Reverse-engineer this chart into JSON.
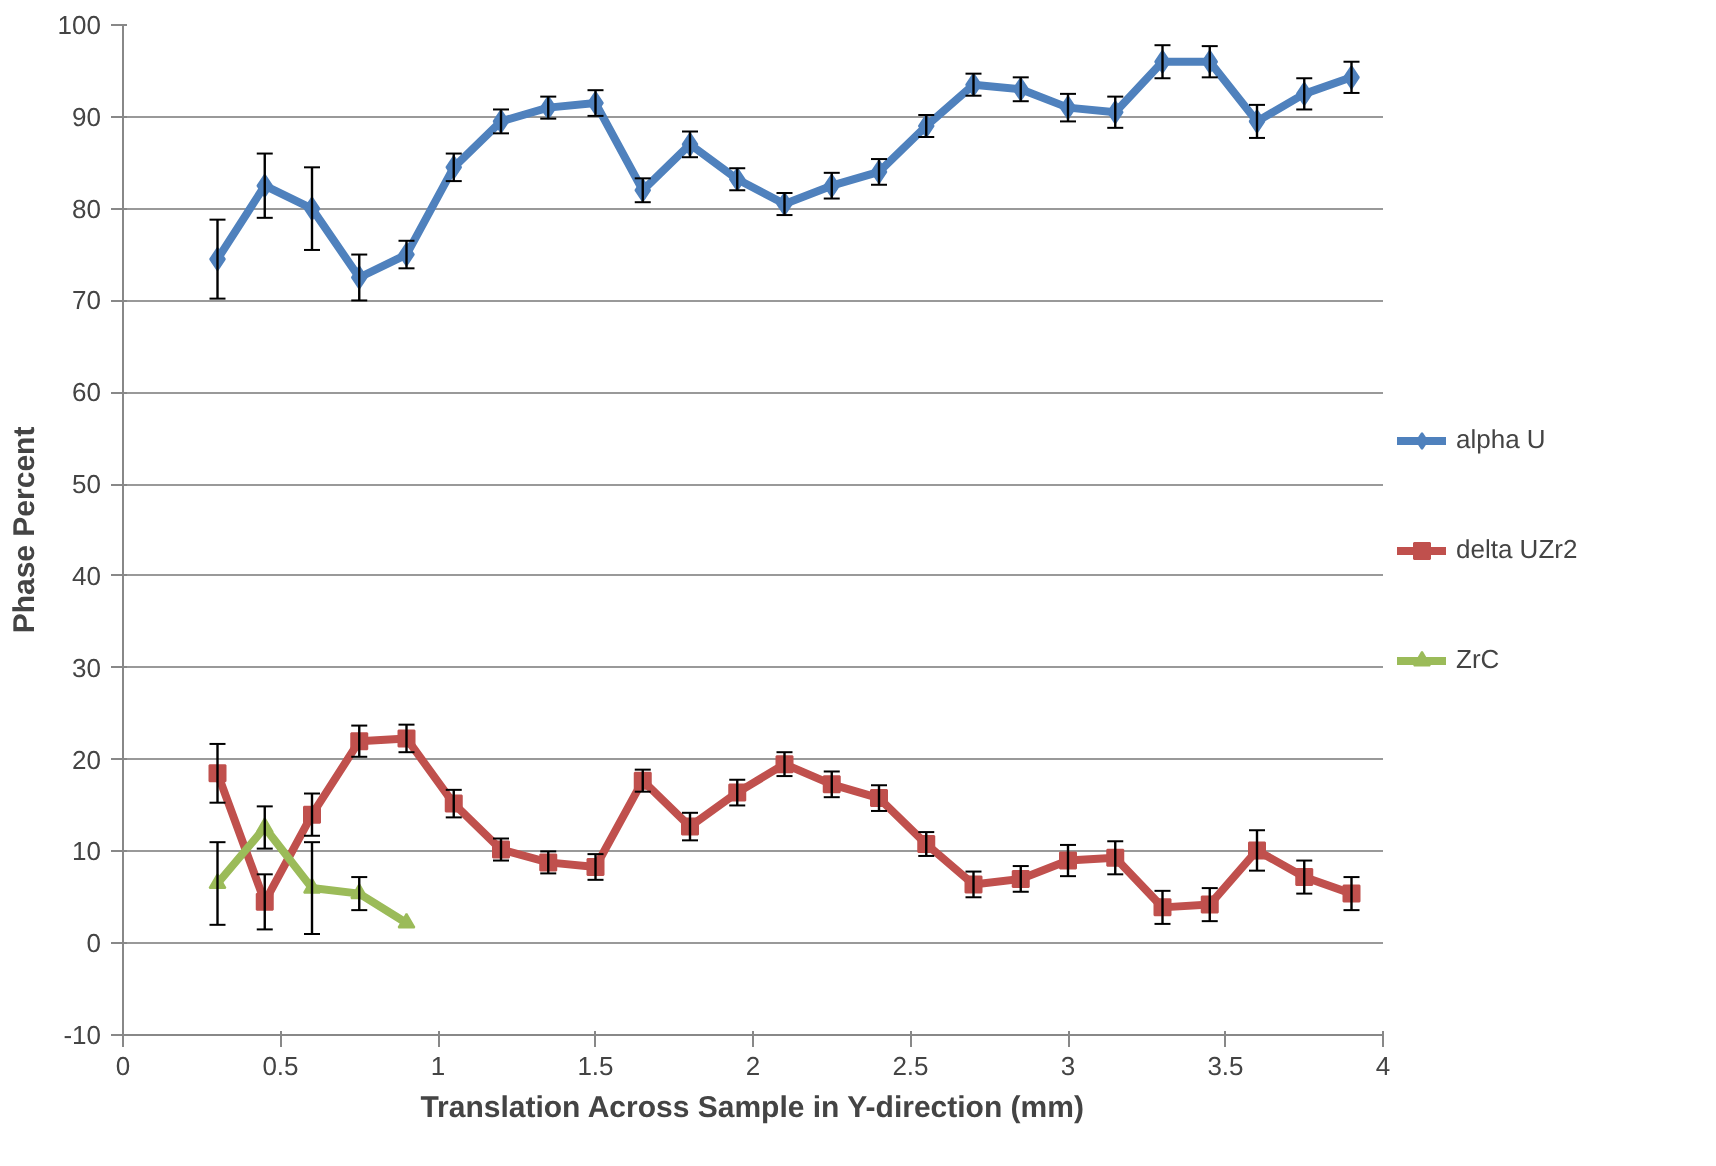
{
  "chart_data": {
    "type": "line",
    "xlabel": "Translation Across Sample in Y-direction (mm)",
    "ylabel": "Phase Percent",
    "x": [
      0.3,
      0.45,
      0.6,
      0.75,
      0.9,
      1.05,
      1.2,
      1.35,
      1.5,
      1.65,
      1.8,
      1.95,
      2.1,
      2.25,
      2.4,
      2.55,
      2.7,
      2.85,
      3.0,
      3.15,
      3.3,
      3.45,
      3.6,
      3.75,
      3.9
    ],
    "series": [
      {
        "name": "alpha U",
        "color": "#4f81bd",
        "marker": "diamond",
        "values": [
          74.5,
          82.5,
          80,
          72.5,
          75,
          84.5,
          89.5,
          91,
          91.5,
          82,
          87,
          83.2,
          80.5,
          82.5,
          84,
          89,
          93.5,
          93,
          91,
          90.5,
          96,
          96,
          89.5,
          92.5,
          94.3
        ],
        "errors": [
          4.3,
          3.5,
          4.5,
          2.5,
          1.5,
          1.5,
          1.3,
          1.2,
          1.4,
          1.3,
          1.4,
          1.2,
          1.2,
          1.4,
          1.4,
          1.2,
          1.2,
          1.3,
          1.5,
          1.7,
          1.8,
          1.7,
          1.8,
          1.7,
          1.7
        ]
      },
      {
        "name": "delta UZr2",
        "color": "#c0504d",
        "marker": "square",
        "values": [
          18.5,
          4.5,
          14,
          22,
          22.3,
          15.2,
          10.2,
          8.8,
          8.3,
          17.7,
          12.7,
          16.4,
          19.5,
          17.3,
          15.8,
          10.8,
          6.4,
          7,
          9,
          9.3,
          3.9,
          4.2,
          10.1,
          7.2,
          5.4
        ],
        "errors": [
          3.2,
          3,
          2.3,
          1.7,
          1.5,
          1.5,
          1.2,
          1.2,
          1.4,
          1.2,
          1.5,
          1.4,
          1.3,
          1.4,
          1.4,
          1.3,
          1.4,
          1.4,
          1.7,
          1.8,
          1.8,
          1.8,
          2.2,
          1.8,
          1.8
        ]
      },
      {
        "name": "ZrC",
        "color": "#9bbb59",
        "marker": "triangle",
        "x": [
          0.3,
          0.45,
          0.6,
          0.75,
          0.9
        ],
        "values": [
          6.5,
          12.6,
          6,
          5.4,
          2.2
        ],
        "errors": [
          4.5,
          2.3,
          5,
          1.8,
          null
        ]
      }
    ],
    "xlim": [
      0,
      4
    ],
    "xticks": [
      0,
      0.5,
      1,
      1.5,
      2,
      2.5,
      3,
      3.5,
      4
    ],
    "ylim": [
      -10,
      100
    ],
    "yticks": [
      -10,
      0,
      10,
      20,
      30,
      40,
      50,
      60,
      70,
      80,
      90,
      100
    ],
    "grid": "y",
    "legend": "right"
  }
}
